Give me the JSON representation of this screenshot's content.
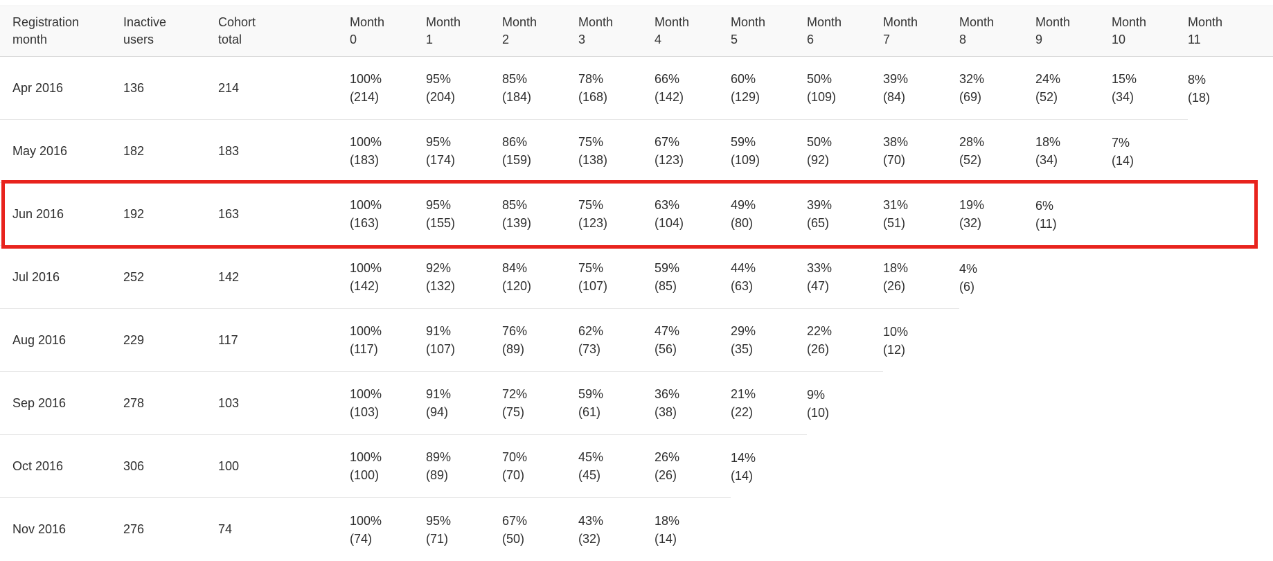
{
  "table": {
    "headers": [
      {
        "line1": "Registration",
        "line2": "month"
      },
      {
        "line1": "Inactive",
        "line2": "users"
      },
      {
        "line1": "Cohort",
        "line2": "total"
      },
      {
        "line1": "Month",
        "line2": "0"
      },
      {
        "line1": "Month",
        "line2": "1"
      },
      {
        "line1": "Month",
        "line2": "2"
      },
      {
        "line1": "Month",
        "line2": "3"
      },
      {
        "line1": "Month",
        "line2": "4"
      },
      {
        "line1": "Month",
        "line2": "5"
      },
      {
        "line1": "Month",
        "line2": "6"
      },
      {
        "line1": "Month",
        "line2": "7"
      },
      {
        "line1": "Month",
        "line2": "8"
      },
      {
        "line1": "Month",
        "line2": "9"
      },
      {
        "line1": "Month",
        "line2": "10"
      },
      {
        "line1": "Month",
        "line2": "11"
      }
    ],
    "rows": [
      {
        "registration_month": "Apr 2016",
        "inactive_users": "136",
        "cohort_total": "214",
        "retention": [
          {
            "pct": "100%",
            "count": "(214)"
          },
          {
            "pct": "95%",
            "count": "(204)"
          },
          {
            "pct": "85%",
            "count": "(184)"
          },
          {
            "pct": "78%",
            "count": "(168)"
          },
          {
            "pct": "66%",
            "count": "(142)"
          },
          {
            "pct": "60%",
            "count": "(129)"
          },
          {
            "pct": "50%",
            "count": "(109)"
          },
          {
            "pct": "39%",
            "count": "(84)"
          },
          {
            "pct": "32%",
            "count": "(69)"
          },
          {
            "pct": "24%",
            "count": "(52)"
          },
          {
            "pct": "15%",
            "count": "(34)"
          },
          {
            "pct": "8%",
            "count": "(18)"
          }
        ]
      },
      {
        "registration_month": "May 2016",
        "inactive_users": "182",
        "cohort_total": "183",
        "retention": [
          {
            "pct": "100%",
            "count": "(183)"
          },
          {
            "pct": "95%",
            "count": "(174)"
          },
          {
            "pct": "86%",
            "count": "(159)"
          },
          {
            "pct": "75%",
            "count": "(138)"
          },
          {
            "pct": "67%",
            "count": "(123)"
          },
          {
            "pct": "59%",
            "count": "(109)"
          },
          {
            "pct": "50%",
            "count": "(92)"
          },
          {
            "pct": "38%",
            "count": "(70)"
          },
          {
            "pct": "28%",
            "count": "(52)"
          },
          {
            "pct": "18%",
            "count": "(34)"
          },
          {
            "pct": "7%",
            "count": "(14)"
          }
        ]
      },
      {
        "registration_month": "Jun 2016",
        "inactive_users": "192",
        "cohort_total": "163",
        "retention": [
          {
            "pct": "100%",
            "count": "(163)"
          },
          {
            "pct": "95%",
            "count": "(155)"
          },
          {
            "pct": "85%",
            "count": "(139)"
          },
          {
            "pct": "75%",
            "count": "(123)"
          },
          {
            "pct": "63%",
            "count": "(104)"
          },
          {
            "pct": "49%",
            "count": "(80)"
          },
          {
            "pct": "39%",
            "count": "(65)"
          },
          {
            "pct": "31%",
            "count": "(51)"
          },
          {
            "pct": "19%",
            "count": "(32)"
          },
          {
            "pct": "6%",
            "count": "(11)"
          }
        ]
      },
      {
        "registration_month": "Jul 2016",
        "inactive_users": "252",
        "cohort_total": "142",
        "retention": [
          {
            "pct": "100%",
            "count": "(142)"
          },
          {
            "pct": "92%",
            "count": "(132)"
          },
          {
            "pct": "84%",
            "count": "(120)"
          },
          {
            "pct": "75%",
            "count": "(107)"
          },
          {
            "pct": "59%",
            "count": "(85)"
          },
          {
            "pct": "44%",
            "count": "(63)"
          },
          {
            "pct": "33%",
            "count": "(47)"
          },
          {
            "pct": "18%",
            "count": "(26)"
          },
          {
            "pct": "4%",
            "count": "(6)"
          }
        ]
      },
      {
        "registration_month": "Aug 2016",
        "inactive_users": "229",
        "cohort_total": "117",
        "retention": [
          {
            "pct": "100%",
            "count": "(117)"
          },
          {
            "pct": "91%",
            "count": "(107)"
          },
          {
            "pct": "76%",
            "count": "(89)"
          },
          {
            "pct": "62%",
            "count": "(73)"
          },
          {
            "pct": "47%",
            "count": "(56)"
          },
          {
            "pct": "29%",
            "count": "(35)"
          },
          {
            "pct": "22%",
            "count": "(26)"
          },
          {
            "pct": "10%",
            "count": "(12)"
          }
        ]
      },
      {
        "registration_month": "Sep 2016",
        "inactive_users": "278",
        "cohort_total": "103",
        "retention": [
          {
            "pct": "100%",
            "count": "(103)"
          },
          {
            "pct": "91%",
            "count": "(94)"
          },
          {
            "pct": "72%",
            "count": "(75)"
          },
          {
            "pct": "59%",
            "count": "(61)"
          },
          {
            "pct": "36%",
            "count": "(38)"
          },
          {
            "pct": "21%",
            "count": "(22)"
          },
          {
            "pct": "9%",
            "count": "(10)"
          }
        ]
      },
      {
        "registration_month": "Oct 2016",
        "inactive_users": "306",
        "cohort_total": "100",
        "retention": [
          {
            "pct": "100%",
            "count": "(100)"
          },
          {
            "pct": "89%",
            "count": "(89)"
          },
          {
            "pct": "70%",
            "count": "(70)"
          },
          {
            "pct": "45%",
            "count": "(45)"
          },
          {
            "pct": "26%",
            "count": "(26)"
          },
          {
            "pct": "14%",
            "count": "(14)"
          }
        ]
      },
      {
        "registration_month": "Nov 2016",
        "inactive_users": "276",
        "cohort_total": "74",
        "retention": [
          {
            "pct": "100%",
            "count": "(74)"
          },
          {
            "pct": "95%",
            "count": "(71)"
          },
          {
            "pct": "67%",
            "count": "(50)"
          },
          {
            "pct": "43%",
            "count": "(32)"
          },
          {
            "pct": "18%",
            "count": "(14)"
          }
        ]
      }
    ]
  },
  "highlight": {
    "registration_month": "Jun 2016",
    "color": "#e8231d"
  },
  "colors": {
    "header_background": "#f9f9f9",
    "header_border": "#d9d9d9",
    "row_separator": "#e7e7e7",
    "text": "#2e2e2e",
    "highlight_red": "#e8231d"
  },
  "chart_data": {
    "type": "table",
    "title": "User retention cohort table by registration month",
    "columns": [
      "Registration month",
      "Inactive users",
      "Cohort total",
      "Month 0",
      "Month 1",
      "Month 2",
      "Month 3",
      "Month 4",
      "Month 5",
      "Month 6",
      "Month 7",
      "Month 8",
      "Month 9",
      "Month 10",
      "Month 11"
    ],
    "series": [
      {
        "name": "Apr 2016",
        "inactive_users": 136,
        "cohort_total": 214,
        "retention_pct": [
          100,
          95,
          85,
          78,
          66,
          60,
          50,
          39,
          32,
          24,
          15,
          8
        ],
        "retained_counts": [
          214,
          204,
          184,
          168,
          142,
          129,
          109,
          84,
          69,
          52,
          34,
          18
        ]
      },
      {
        "name": "May 2016",
        "inactive_users": 182,
        "cohort_total": 183,
        "retention_pct": [
          100,
          95,
          86,
          75,
          67,
          59,
          50,
          38,
          28,
          18,
          7
        ],
        "retained_counts": [
          183,
          174,
          159,
          138,
          123,
          109,
          92,
          70,
          52,
          34,
          14
        ]
      },
      {
        "name": "Jun 2016",
        "inactive_users": 192,
        "cohort_total": 163,
        "retention_pct": [
          100,
          95,
          85,
          75,
          63,
          49,
          39,
          31,
          19,
          6
        ],
        "retained_counts": [
          163,
          155,
          139,
          123,
          104,
          80,
          65,
          51,
          32,
          11
        ]
      },
      {
        "name": "Jul 2016",
        "inactive_users": 252,
        "cohort_total": 142,
        "retention_pct": [
          100,
          92,
          84,
          75,
          59,
          44,
          33,
          18,
          4
        ],
        "retained_counts": [
          142,
          132,
          120,
          107,
          85,
          63,
          47,
          26,
          6
        ]
      },
      {
        "name": "Aug 2016",
        "inactive_users": 229,
        "cohort_total": 117,
        "retention_pct": [
          100,
          91,
          76,
          62,
          47,
          29,
          22,
          10
        ],
        "retained_counts": [
          117,
          107,
          89,
          73,
          56,
          35,
          26,
          12
        ]
      },
      {
        "name": "Sep 2016",
        "inactive_users": 278,
        "cohort_total": 103,
        "retention_pct": [
          100,
          91,
          72,
          59,
          36,
          21,
          9
        ],
        "retained_counts": [
          103,
          94,
          75,
          61,
          38,
          22,
          10
        ]
      },
      {
        "name": "Oct 2016",
        "inactive_users": 306,
        "cohort_total": 100,
        "retention_pct": [
          100,
          89,
          70,
          45,
          26,
          14
        ],
        "retained_counts": [
          100,
          89,
          70,
          45,
          26,
          14
        ]
      },
      {
        "name": "Nov 2016",
        "inactive_users": 276,
        "cohort_total": 74,
        "retention_pct": [
          100,
          95,
          67,
          43,
          18
        ],
        "retained_counts": [
          74,
          71,
          50,
          32,
          14
        ]
      }
    ],
    "highlighted_row": "Jun 2016",
    "legend_position": "none",
    "grid": "horizontal-row-separators-only"
  }
}
